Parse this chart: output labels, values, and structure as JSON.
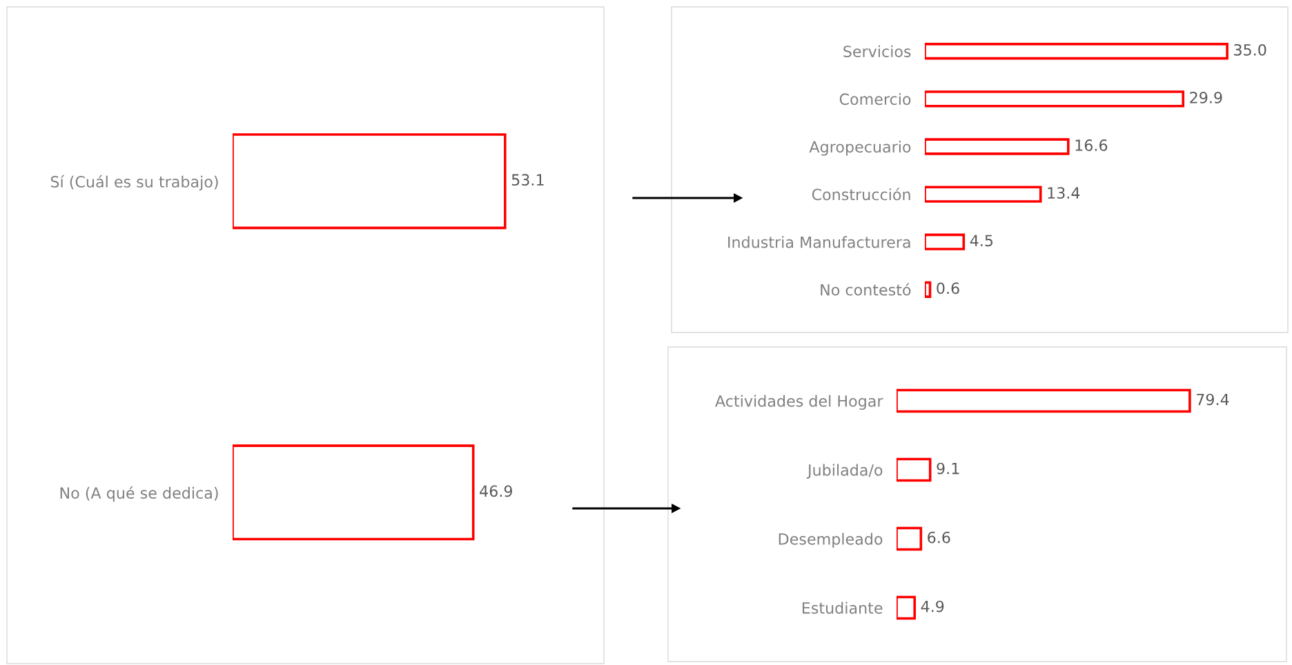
{
  "chart_data": [
    {
      "type": "bar",
      "orientation": "horizontal",
      "categories": [
        "Sí (Cuál es su trabajo)",
        "No (A qué se dedica)"
      ],
      "values": [
        53.1,
        46.9
      ],
      "value_labels": [
        "53.1",
        "46.9"
      ],
      "color": "#ff0000",
      "tick_labels": "y",
      "grid": false
    },
    {
      "type": "bar",
      "orientation": "horizontal",
      "categories": [
        "Servicios",
        "Comercio",
        "Agropecuario",
        "Construcción",
        "Industria Manufacturera",
        "No contestó"
      ],
      "values": [
        35.0,
        29.9,
        16.6,
        13.4,
        4.5,
        0.6
      ],
      "value_labels": [
        "35.0",
        "29.9",
        "16.6",
        "13.4",
        "4.5",
        "0.6"
      ],
      "color": "#ff0000",
      "tick_labels": "y",
      "grid": false
    },
    {
      "type": "bar",
      "orientation": "horizontal",
      "categories": [
        "Actividades del Hogar",
        "Jubilada/o",
        "Desempleado",
        "Estudiante"
      ],
      "values": [
        79.4,
        9.1,
        6.6,
        4.9
      ],
      "value_labels": [
        "79.4",
        "9.1",
        "6.6",
        "4.9"
      ],
      "color": "#ff0000",
      "tick_labels": "y",
      "grid": false
    }
  ]
}
